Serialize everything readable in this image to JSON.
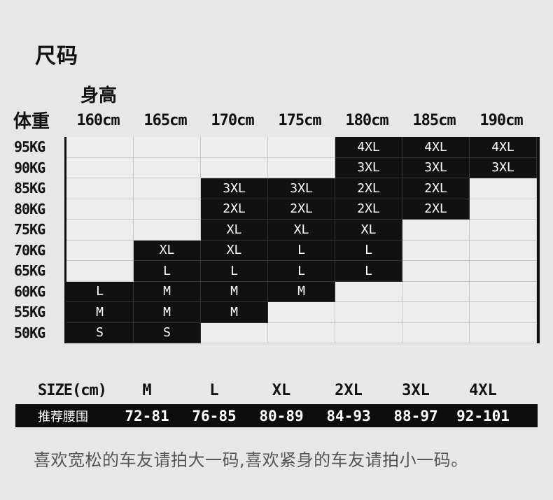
{
  "title": "尺码",
  "height_label": "身高",
  "weight_label": "体重",
  "heights": [
    "160cm",
    "165cm",
    "170cm",
    "175cm",
    "180cm",
    "185cm",
    "190cm"
  ],
  "weights": [
    "95KG",
    "90KG",
    "85KG",
    "80KG",
    "75KG",
    "70KG",
    "65KG",
    "60KG",
    "55KG",
    "50KG"
  ],
  "grid": [
    [
      "",
      "",
      "",
      "",
      "4XL",
      "4XL",
      "4XL"
    ],
    [
      "",
      "",
      "",
      "",
      "3XL",
      "3XL",
      "3XL"
    ],
    [
      "",
      "",
      "3XL",
      "3XL",
      "2XL",
      "2XL",
      ""
    ],
    [
      "",
      "",
      "2XL",
      "2XL",
      "2XL",
      "2XL",
      ""
    ],
    [
      "",
      "",
      "XL",
      "XL",
      "XL",
      "",
      ""
    ],
    [
      "",
      "XL",
      "XL",
      "L",
      "L",
      "",
      ""
    ],
    [
      "",
      "L",
      "L",
      "L",
      "L",
      "",
      ""
    ],
    [
      "L",
      "M",
      "M",
      "M",
      "",
      "",
      ""
    ],
    [
      "M",
      "M",
      "M",
      "",
      "",
      "",
      ""
    ],
    [
      "S",
      "S",
      "",
      "",
      "",
      "",
      ""
    ]
  ],
  "size_row": {
    "label": "SIZE(cm)",
    "sizes": [
      "M",
      "L",
      "XL",
      "2XL",
      "3XL",
      "4XL"
    ]
  },
  "waist_row": {
    "label": "推荐腰围",
    "values": [
      "72-81",
      "76-85",
      "80-89",
      "84-93",
      "88-97",
      "92-101"
    ]
  },
  "note": "喜欢宽松的车友请拍大一码,喜欢紧身的车友请拍小一码。"
}
